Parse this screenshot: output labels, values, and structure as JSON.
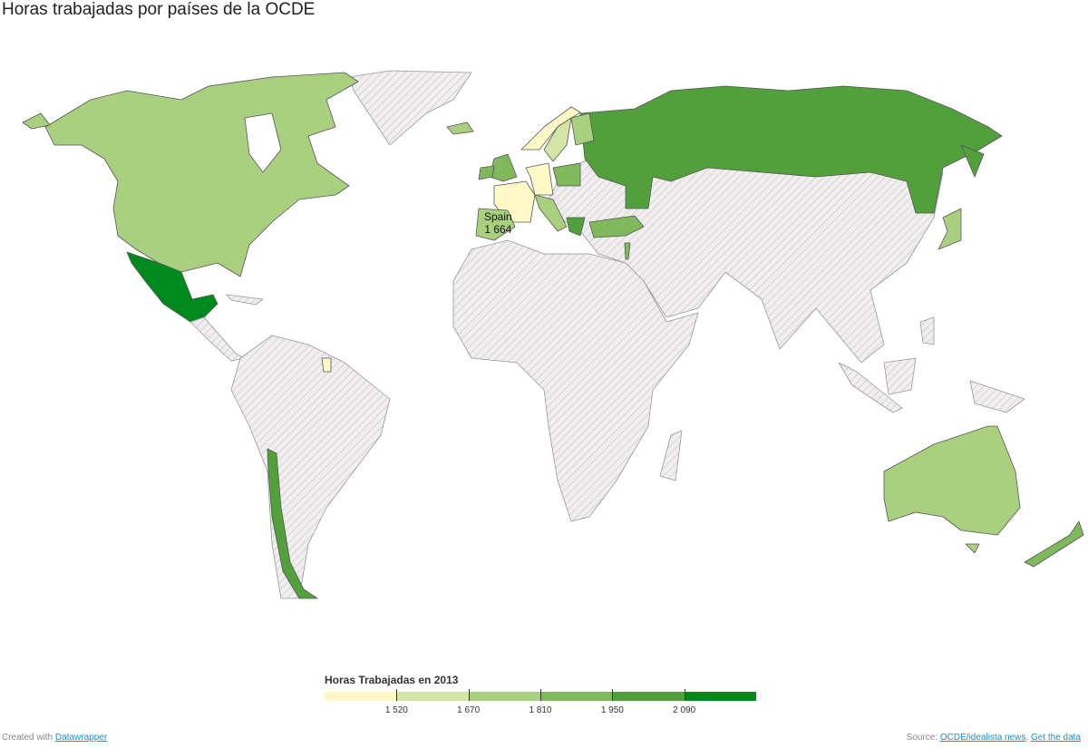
{
  "title": "Horas trabajadas por países de la OCDE",
  "colors": {
    "no_data": "#e9e6e6",
    "scale": [
      "#fff9c7",
      "#d4e6a5",
      "#a9d07f",
      "#7fb95c",
      "#52a03c",
      "#008a1e"
    ]
  },
  "legend": {
    "title": "Horas Trabajadas en 2013",
    "ticks": [
      "1 520",
      "1 670",
      "1 810",
      "1 950",
      "2 090"
    ]
  },
  "tooltip": {
    "country": "Spain",
    "value": "1 664"
  },
  "countries": {
    "canada_usa": 2,
    "mexico": 5,
    "chile": 4,
    "iceland": 2,
    "france": 0,
    "germany": 0,
    "norway": 0,
    "sweden": 1,
    "finland": 2,
    "uk": 3,
    "ireland": 3,
    "spain": 2,
    "poland": 3,
    "italy": 2,
    "greece": 4,
    "turkey": 3,
    "israel": 3,
    "russia": 4,
    "japan": 2,
    "australia": 2,
    "new_zealand": 3,
    "french_guiana": 0
  },
  "footer": {
    "created_prefix": "Created with",
    "created_link": "Datawrapper",
    "source_prefix": "Source:",
    "source_link": "OCDE/idealista news",
    "separator": ",",
    "get_data": "Get the data"
  }
}
